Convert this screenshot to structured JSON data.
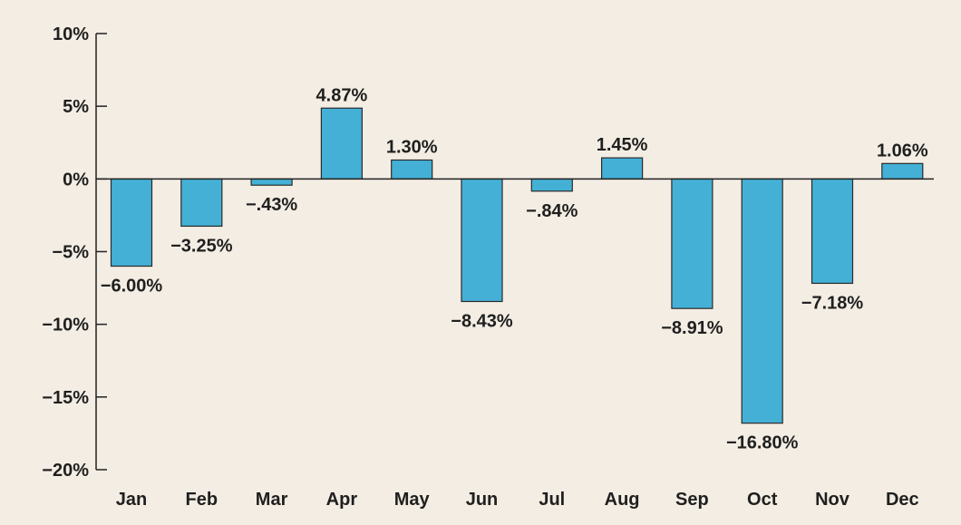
{
  "chart_data": {
    "type": "bar",
    "categories": [
      "Jan",
      "Feb",
      "Mar",
      "Apr",
      "May",
      "Jun",
      "Jul",
      "Aug",
      "Sep",
      "Oct",
      "Nov",
      "Dec"
    ],
    "values": [
      -6.0,
      -3.25,
      -0.43,
      4.87,
      1.3,
      -8.43,
      -0.84,
      1.45,
      -8.91,
      -16.8,
      -7.18,
      1.06
    ],
    "data_labels": [
      "−6.00%",
      "−3.25%",
      "−.43%",
      "4.87%",
      "1.30%",
      "−8.43%",
      "−.84%",
      "1.45%",
      "−8.91%",
      "−16.80%",
      "−7.18%",
      "1.06%"
    ],
    "y_ticks": [
      10,
      5,
      0,
      -5,
      -10,
      -15,
      -20
    ],
    "y_tick_labels": [
      "10%",
      "5%",
      "0%",
      "−5%",
      "−10%",
      "−15%",
      "−20%"
    ],
    "ylim": [
      -20,
      10
    ],
    "grid": false,
    "bar_color": "#45b0d6",
    "background_color": "#f3ede3"
  }
}
